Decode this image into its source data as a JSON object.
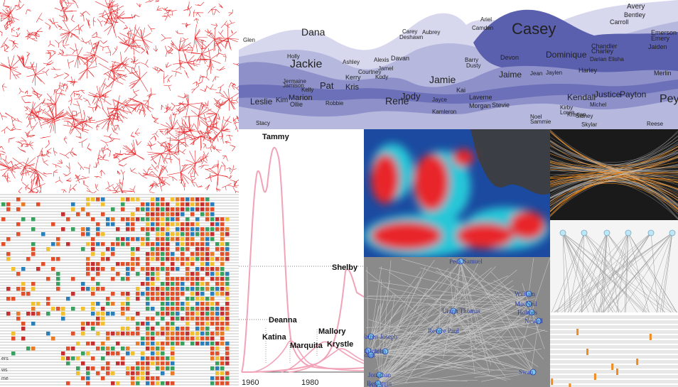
{
  "panels": {
    "stream": {
      "names": [
        {
          "t": "Dana"
        },
        {
          "t": "Jackie"
        },
        {
          "t": "Pat"
        },
        {
          "t": "Kris"
        },
        {
          "t": "Leslie"
        },
        {
          "t": "Kim"
        },
        {
          "t": "Marion"
        },
        {
          "t": "Ollie"
        },
        {
          "t": "Robbie"
        },
        {
          "t": "Jody"
        },
        {
          "t": "Rene"
        },
        {
          "t": "Jamie"
        },
        {
          "t": "Casey"
        },
        {
          "t": "Jaime"
        },
        {
          "t": "Dominique"
        },
        {
          "t": "Kendall"
        },
        {
          "t": "Justice"
        },
        {
          "t": "Payton"
        },
        {
          "t": "Peyton"
        },
        {
          "t": "Avery"
        },
        {
          "t": "Bentley"
        },
        {
          "t": "Carroll"
        },
        {
          "t": "Emerson"
        },
        {
          "t": "Emery"
        },
        {
          "t": "Jaiden"
        },
        {
          "t": "Devon"
        },
        {
          "t": "Chandler"
        },
        {
          "t": "Charley"
        },
        {
          "t": "Darian"
        },
        {
          "t": "Elisha"
        },
        {
          "t": "Harley"
        },
        {
          "t": "Merlin"
        },
        {
          "t": "Kai"
        },
        {
          "t": "Laverne"
        },
        {
          "t": "Morgan"
        },
        {
          "t": "Stevie"
        },
        {
          "t": "Kirby"
        },
        {
          "t": "Loren"
        },
        {
          "t": "Kristian"
        },
        {
          "t": "Noel"
        },
        {
          "t": "Sammie"
        },
        {
          "t": "Sidney"
        },
        {
          "t": "Michel"
        },
        {
          "t": "Skylar"
        },
        {
          "t": "Reese"
        },
        {
          "t": "Kamleron"
        },
        {
          "t": "Jayce"
        },
        {
          "t": "Jean"
        },
        {
          "t": "Jaylen"
        },
        {
          "t": "Carey"
        },
        {
          "t": "Deshawn"
        },
        {
          "t": "Aubrey"
        },
        {
          "t": "Ariel"
        },
        {
          "t": "Camden"
        },
        {
          "t": "Stacy"
        },
        {
          "t": "Glen"
        },
        {
          "t": "Holly"
        },
        {
          "t": "Jermaine"
        },
        {
          "t": "Jamison"
        },
        {
          "t": "Kelly"
        },
        {
          "t": "Ashley"
        },
        {
          "t": "Kerry"
        },
        {
          "t": "Courtney"
        },
        {
          "t": "Alexis"
        },
        {
          "t": "Jamel"
        },
        {
          "t": "Davan"
        },
        {
          "t": "Kody"
        },
        {
          "t": "Dusty"
        },
        {
          "t": "Barry"
        }
      ]
    },
    "line": {
      "labels": [
        "Tammy",
        "Shelby",
        "Deanna",
        "Katina",
        "Marquita",
        "Mallory",
        "Krystle"
      ],
      "axis": [
        "1960",
        "1980"
      ]
    },
    "legend_fragments": [
      "ers",
      "ws",
      "me"
    ],
    "graph": {
      "nodes": [
        "Peck Samuel",
        "Urann Thomas",
        "Revere Paul",
        "Warren Joseph",
        "Nathaniel",
        "Adam",
        "John",
        "Jonathan",
        "Benjamin",
        "Thomas",
        "William",
        "MacNeil",
        "Holmes",
        "Newell",
        "Swan"
      ]
    }
  },
  "colors": {
    "red": "#e8262a",
    "stream_dark": "#5a5fae",
    "stream_light": "#c9cbe6",
    "pink": "#f2a3b8",
    "orange": "#f08c1e",
    "graph_bg": "#8a8a8a"
  }
}
